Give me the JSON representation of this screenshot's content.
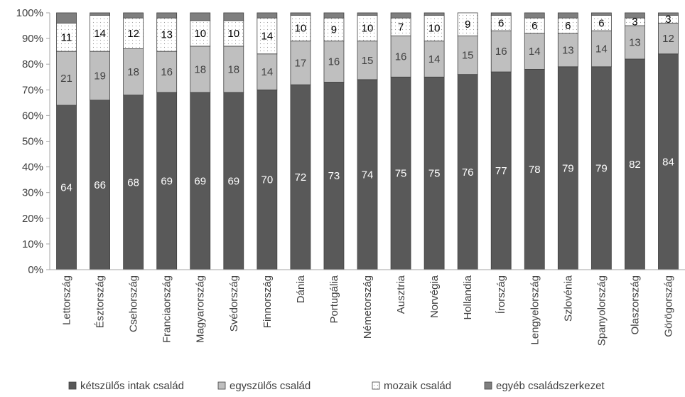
{
  "chart_data": {
    "type": "bar",
    "stacked": "percent",
    "title": "",
    "xlabel": "",
    "ylabel": "",
    "ylim": [
      0,
      100
    ],
    "y_ticks": [
      "0%",
      "10%",
      "20%",
      "30%",
      "40%",
      "50%",
      "60%",
      "70%",
      "80%",
      "90%",
      "100%"
    ],
    "grid": false,
    "legend_position": "bottom",
    "categories": [
      "Lettország",
      "Észtország",
      "Csehország",
      "Franciaország",
      "Magyarország",
      "Svédország",
      "Finnország",
      "Dánia",
      "Portugália",
      "Németország",
      "Ausztria",
      "Norvégia",
      "Hollandia",
      "Írország",
      "Lengyelország",
      "Szlovénia",
      "Spanyolország",
      "Olaszország",
      "Görögország"
    ],
    "series": [
      {
        "name": "kétszülős intak család",
        "color": "#595959",
        "label_color": "#ffffff",
        "pattern": "solid",
        "values": [
          64,
          66,
          68,
          69,
          69,
          69,
          70,
          72,
          73,
          74,
          75,
          75,
          76,
          77,
          78,
          79,
          79,
          82,
          84
        ]
      },
      {
        "name": "egyszülős család",
        "color": "#bfbfbf",
        "label_color": "#404040",
        "pattern": "solid",
        "values": [
          21,
          19,
          18,
          16,
          18,
          18,
          14,
          17,
          16,
          15,
          16,
          14,
          15,
          16,
          14,
          13,
          14,
          13,
          12
        ]
      },
      {
        "name": "mozaik család",
        "color": "#ffffff",
        "label_color": "#000000",
        "pattern": "dots",
        "values": [
          11,
          14,
          12,
          13,
          10,
          10,
          14,
          10,
          9,
          10,
          7,
          10,
          9,
          6,
          6,
          6,
          6,
          3,
          3
        ]
      },
      {
        "name": "egyéb családszerkezet",
        "color": "#7f7f7f",
        "label_color": null,
        "pattern": "solid",
        "values": [
          4,
          1,
          2,
          2,
          3,
          3,
          2,
          1,
          2,
          1,
          2,
          1,
          0,
          1,
          2,
          2,
          1,
          2,
          1
        ]
      }
    ]
  }
}
